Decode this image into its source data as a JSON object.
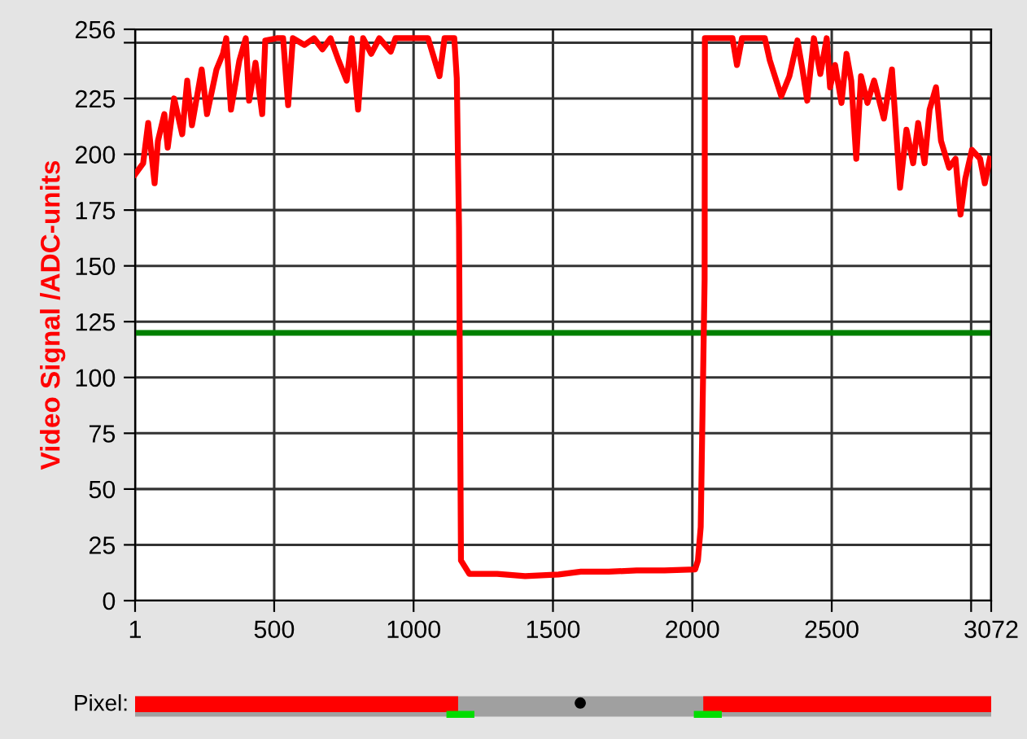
{
  "chart_data": {
    "type": "line",
    "ylabel": "Video Signal /ADC-units",
    "x": [
      1,
      30,
      48,
      71,
      83,
      106,
      118,
      141,
      170,
      188,
      205,
      240,
      259,
      293,
      316,
      328,
      345,
      375,
      398,
      410,
      433,
      457,
      468,
      509,
      532,
      550,
      567,
      608,
      643,
      673,
      702,
      731,
      760,
      778,
      801,
      819,
      848,
      877,
      918,
      935,
      1052,
      1093,
      1111,
      1146,
      1155,
      1163,
      1170,
      1200,
      1300,
      1400,
      1520,
      1600,
      1700,
      1800,
      1900,
      2010,
      2020,
      2030,
      2044,
      2045,
      2144,
      2160,
      2178,
      2260,
      2278,
      2319,
      2348,
      2377,
      2395,
      2412,
      2436,
      2459,
      2482,
      2494,
      2512,
      2535,
      2553,
      2570,
      2588,
      2605,
      2628,
      2652,
      2687,
      2716,
      2745,
      2768,
      2792,
      2810,
      2833,
      2851,
      2874,
      2892,
      2921,
      2944,
      2962,
      2979,
      3003,
      3032,
      3049,
      3067
    ],
    "series": [
      {
        "color": "#ff0000",
        "values": [
          191,
          196,
          214,
          187,
          206,
          218,
          203,
          225,
          209,
          233,
          213,
          238,
          218,
          238,
          245,
          252,
          220,
          242,
          252,
          224,
          241,
          218,
          251,
          252,
          252,
          222,
          252,
          249,
          252,
          247,
          252,
          242,
          233,
          252,
          220,
          252,
          245,
          252,
          246,
          252,
          252,
          235,
          252,
          252,
          234,
          167,
          18,
          12,
          12,
          11,
          11.7,
          13,
          13,
          13.5,
          13.5,
          14,
          18,
          33,
          144,
          252,
          252,
          240,
          252,
          252,
          242,
          226,
          235,
          251,
          238,
          224,
          252,
          236,
          252,
          230,
          240,
          223,
          245,
          233,
          198,
          235,
          223,
          233,
          216,
          238,
          185,
          211,
          196,
          214,
          196,
          220,
          230,
          206,
          194,
          198,
          173,
          189,
          202,
          198,
          187,
          198
        ]
      }
    ],
    "xlim": [
      1,
      3072
    ],
    "xticks": [
      1,
      500,
      1000,
      1500,
      2000,
      2500,
      {
        "value": 3000,
        "label": null
      },
      3072
    ],
    "ylim": [
      0,
      256
    ],
    "yticks": [
      0,
      25,
      50,
      75,
      100,
      125,
      150,
      175,
      200,
      225,
      {
        "value": 250,
        "label": null
      },
      256
    ],
    "grid": true,
    "ref_lines": [
      {
        "axis": "y",
        "value": 120,
        "color": "#008000"
      }
    ],
    "annotations": [
      "Pixel:"
    ]
  }
}
